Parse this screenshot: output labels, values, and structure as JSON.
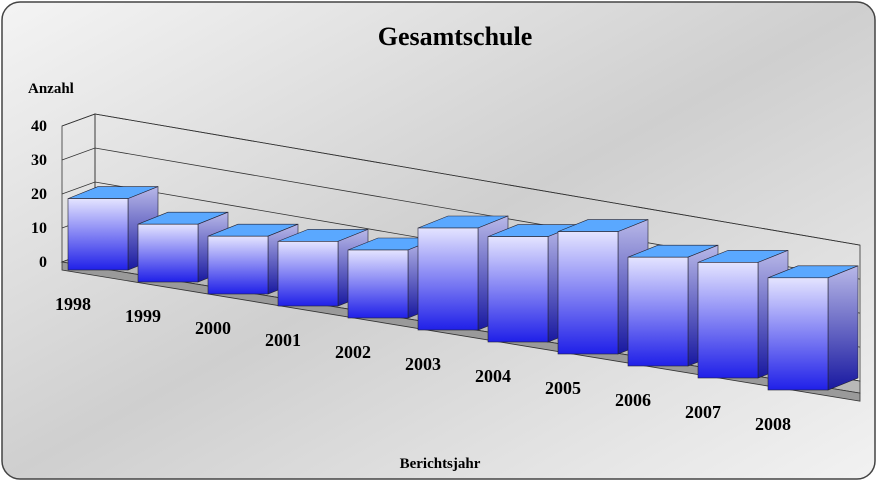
{
  "chart_data": {
    "type": "bar3d",
    "title": "Gesamtschule",
    "y_label": "Anzahl",
    "x_label": "Berichtsjahr",
    "categories": [
      "1998",
      "1999",
      "2000",
      "2001",
      "2002",
      "2003",
      "2004",
      "2005",
      "2006",
      "2007",
      "2008"
    ],
    "values": [
      21,
      17,
      17,
      19,
      20,
      30,
      31,
      36,
      32,
      34,
      33
    ],
    "color": "#2a2af0",
    "ylim": [
      0,
      40
    ],
    "yticks": [
      0,
      10,
      20,
      30,
      40
    ],
    "grid": true
  }
}
